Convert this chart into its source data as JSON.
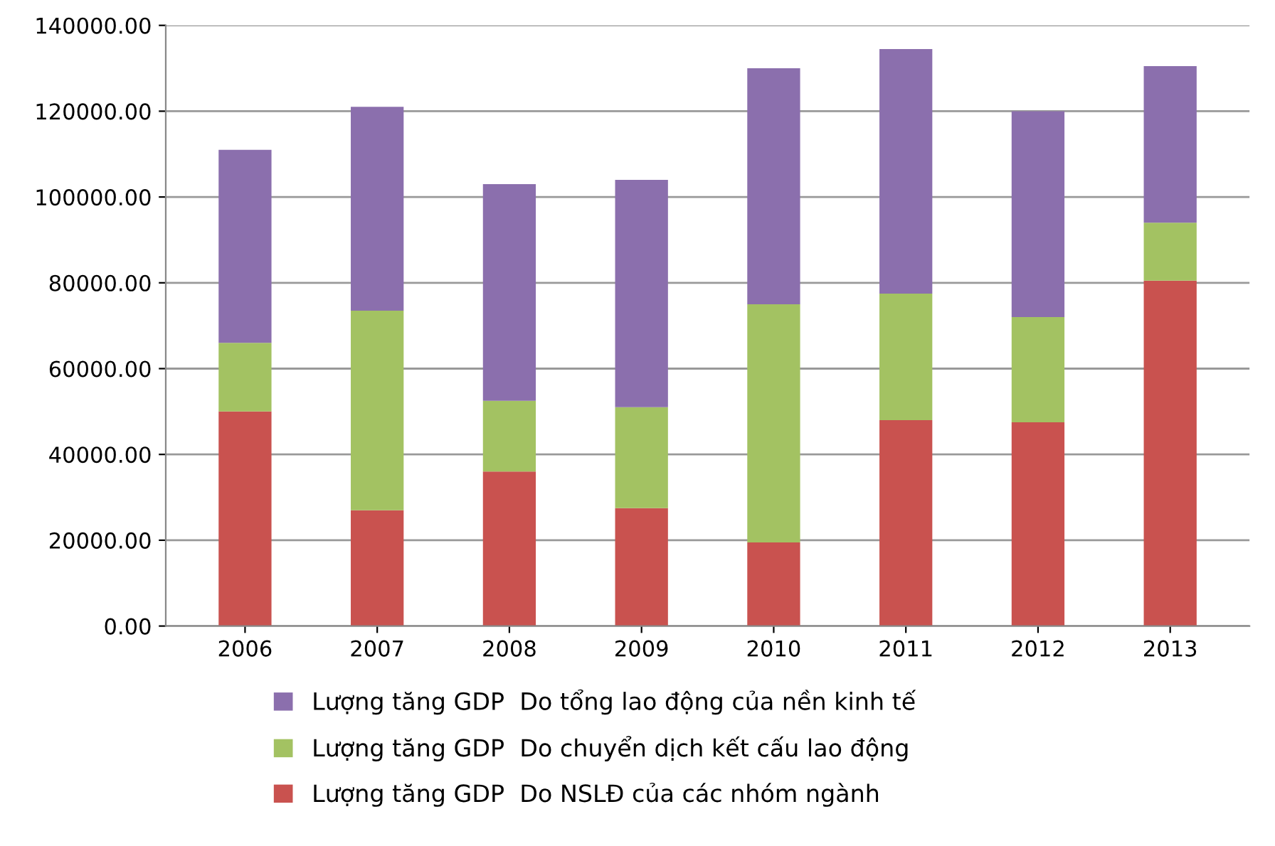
{
  "chart_data": {
    "type": "bar",
    "stacked": true,
    "categories": [
      "2006",
      "2007",
      "2008",
      "2009",
      "2010",
      "2011",
      "2012",
      "2013"
    ],
    "series": [
      {
        "name": "Lượng tăng GDP  Do NSLĐ của các nhóm ngành",
        "color": "#c9524f",
        "values": [
          50000,
          27000,
          36000,
          27500,
          19500,
          48000,
          47500,
          80500
        ]
      },
      {
        "name": "Lượng tăng GDP  Do chuyển dịch kết cấu lao động",
        "color": "#a3c262",
        "values": [
          16000,
          46500,
          16500,
          23500,
          55500,
          29500,
          24500,
          13500
        ]
      },
      {
        "name": "Lượng tăng GDP  Do tổng lao động của nền kinh tế",
        "color": "#8b6fad",
        "values": [
          45000,
          47500,
          50500,
          53000,
          55000,
          57000,
          48000,
          36500
        ]
      }
    ],
    "ylim": [
      0,
      140000
    ],
    "yticks": [
      {
        "value": 0,
        "label": "0.00"
      },
      {
        "value": 20000,
        "label": "20000.00"
      },
      {
        "value": 40000,
        "label": "40000.00"
      },
      {
        "value": 60000,
        "label": "60000.00"
      },
      {
        "value": 80000,
        "label": "80000.00"
      },
      {
        "value": 100000,
        "label": "100000.00"
      },
      {
        "value": 120000,
        "label": "120000.00"
      },
      {
        "value": 140000,
        "label": "140000.00"
      }
    ],
    "grid": "y",
    "legend": "bottom"
  }
}
